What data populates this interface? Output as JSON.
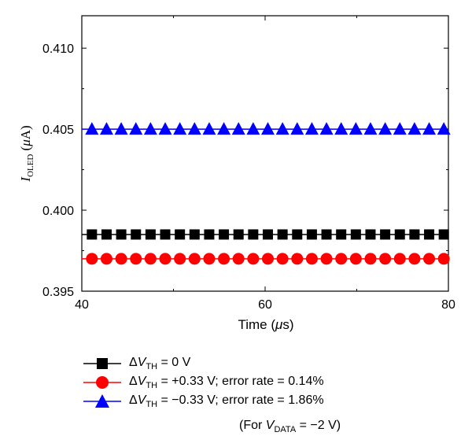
{
  "chart_data": {
    "type": "line",
    "ylabel_parts": {
      "main": "I",
      "sub": "OLED",
      "unit_open": " (",
      "unit_mu": "μ",
      "unit_rest": "A)"
    },
    "xlabel_parts": {
      "main": "Time (",
      "mu": "μ",
      "rest": "s)"
    },
    "xlim": [
      40,
      80
    ],
    "ylim": [
      0.395,
      0.412
    ],
    "x_ticks": [
      "40",
      "60",
      "80"
    ],
    "y_ticks": [
      "0.395",
      "0.400",
      "0.405",
      "0.410"
    ],
    "x": [
      41.1,
      42.7,
      44.3,
      45.9,
      47.5,
      49.1,
      50.7,
      52.3,
      53.9,
      55.5,
      57.1,
      58.7,
      60.3,
      61.9,
      63.5,
      65.1,
      66.7,
      68.3,
      69.9,
      71.5,
      73.1,
      74.7,
      76.3,
      77.9,
      79.5
    ],
    "series": [
      {
        "marker": "square",
        "color": "#000000",
        "y": 0.3985
      },
      {
        "marker": "circle",
        "color": "#ff0000",
        "y": 0.397
      },
      {
        "marker": "triangle",
        "color": "#0000ff",
        "y": 0.405
      }
    ]
  },
  "legend": [
    {
      "delta": "Δ",
      "v": "V",
      "sub": "TH",
      "rest": " = 0 V"
    },
    {
      "delta": "Δ",
      "v": "V",
      "sub": "TH",
      "rest": " = +0.33 V; error rate = 0.14%"
    },
    {
      "delta": "Δ",
      "v": "V",
      "sub": "TH",
      "rest": " = −0.33 V; error rate = 1.86%"
    }
  ],
  "note": {
    "pre": "(For ",
    "v": "V",
    "sub": "DATA",
    "post": " = −2 V)"
  }
}
